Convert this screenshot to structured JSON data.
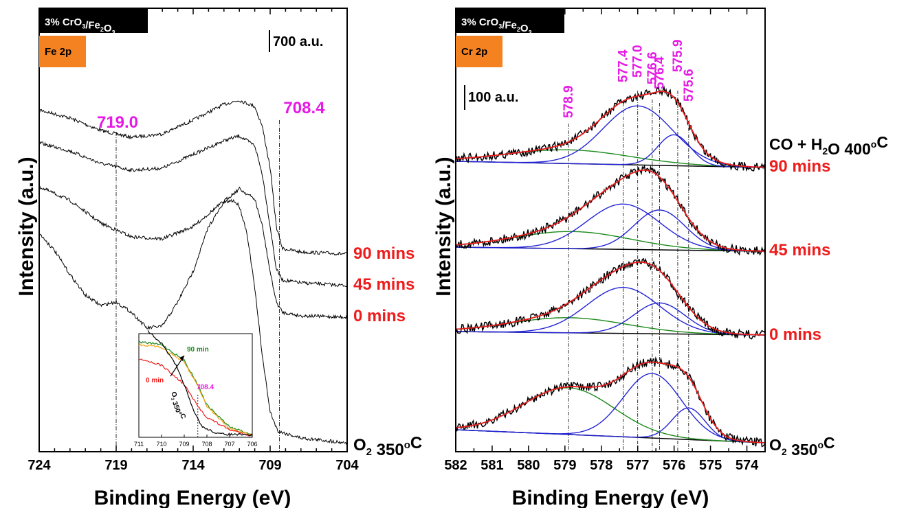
{
  "chart_data": [
    {
      "type": "line",
      "panel": "Fe 2p",
      "sample_label": "3% CrO3/Fe2O3",
      "sample_label_parts": [
        "3% CrO",
        "3",
        "/Fe",
        "2",
        "O",
        "3"
      ],
      "core_level_label": "Fe 2p",
      "scale_bar_label": "700 a.u.",
      "xlabel": "Binding Energy (eV)",
      "ylabel": "Intensity (a.u.)",
      "xlim": [
        724,
        704
      ],
      "x_reversed": true,
      "x_ticks": [
        724,
        719,
        714,
        709,
        704
      ],
      "grid": false,
      "reference_lines": [
        {
          "x": 719.0,
          "label": "719.0"
        },
        {
          "x": 708.4,
          "label": "708.4"
        }
      ],
      "series_labels": [
        {
          "text": "90 mins",
          "color": "#ee1c1c"
        },
        {
          "text": "45 mins",
          "color": "#ee1c1c"
        },
        {
          "text": "0 mins",
          "color": "#ee1c1c"
        },
        {
          "text": "O2 350°C",
          "parts": [
            "O",
            "2",
            " 350",
            "o",
            "C"
          ],
          "color": "#000000"
        }
      ],
      "series": [
        {
          "label_ref": "90 mins",
          "points": [
            [
              724,
              160
            ],
            [
              722,
              172
            ],
            [
              720,
              190
            ],
            [
              718,
              200
            ],
            [
              716,
              195
            ],
            [
              714,
              175
            ],
            [
              712,
              152
            ],
            [
              711,
              146
            ],
            [
              710,
              155
            ],
            [
              709.5,
              185
            ],
            [
              709,
              245
            ],
            [
              708.6,
              330
            ],
            [
              708.2,
              362
            ],
            [
              707,
              367
            ],
            [
              704,
              370
            ]
          ]
        },
        {
          "label_ref": "45 mins",
          "points": [
            [
              724,
              208
            ],
            [
              722,
              220
            ],
            [
              720,
              238
            ],
            [
              718,
              248
            ],
            [
              716,
              245
            ],
            [
              714,
              225
            ],
            [
              712,
              205
            ],
            [
              711,
              198
            ],
            [
              710,
              212
            ],
            [
              709.5,
              255
            ],
            [
              709,
              330
            ],
            [
              708.6,
              392
            ],
            [
              708.2,
              408
            ],
            [
              707,
              412
            ],
            [
              704,
              416
            ]
          ]
        },
        {
          "label_ref": "0 mins",
          "points": [
            [
              724,
              272
            ],
            [
              722,
              292
            ],
            [
              720,
              325
            ],
            [
              718,
              345
            ],
            [
              716,
              348
            ],
            [
              714,
              330
            ],
            [
              712,
              293
            ],
            [
              711,
              275
            ],
            [
              710,
              290
            ],
            [
              709.5,
              330
            ],
            [
              709,
              396
            ],
            [
              708.6,
              440
            ],
            [
              708.2,
              455
            ],
            [
              707,
              460
            ],
            [
              704,
              462
            ]
          ]
        },
        {
          "label_ref": "O2 350°C",
          "points": [
            [
              724,
              340
            ],
            [
              723,
              365
            ],
            [
              722,
              400
            ],
            [
              721,
              430
            ],
            [
              720,
              445
            ],
            [
              719,
              440
            ],
            [
              718,
              455
            ],
            [
              717,
              478
            ],
            [
              716,
              475
            ],
            [
              715,
              440
            ],
            [
              714,
              395
            ],
            [
              713,
              330
            ],
            [
              712,
              295
            ],
            [
              711.4,
              292
            ],
            [
              711,
              300
            ],
            [
              710.5,
              340
            ],
            [
              710,
              420
            ],
            [
              709.5,
              520
            ],
            [
              709,
              600
            ],
            [
              708.5,
              628
            ],
            [
              707,
              638
            ],
            [
              704,
              645
            ]
          ]
        }
      ],
      "inset": {
        "xlim": [
          711,
          706
        ],
        "x_ticks": [
          711,
          710,
          709,
          708,
          707,
          706
        ],
        "annotations": [
          {
            "text": "90 min",
            "color": "#1a8a1a"
          },
          {
            "text": "0 min",
            "color": "#ee1c1c"
          },
          {
            "text": "708.4",
            "color": "#e619e6"
          },
          {
            "text": "O2 350°C",
            "parts": [
              "O",
              "2",
              " 350",
              "o",
              "C"
            ],
            "color": "#000000"
          }
        ],
        "series": [
          {
            "color": "#1a8a1a",
            "points": [
              [
                711,
                498
              ],
              [
                710,
                502
              ],
              [
                709,
                525
              ],
              [
                708.4,
                560
              ],
              [
                708,
                590
              ],
              [
                707,
                622
              ],
              [
                706,
                633
              ]
            ]
          },
          {
            "color": "#f5a30f",
            "points": [
              [
                711,
                502
              ],
              [
                710,
                506
              ],
              [
                709,
                528
              ],
              [
                708.4,
                562
              ],
              [
                708,
                592
              ],
              [
                707,
                624
              ],
              [
                706,
                634
              ]
            ]
          },
          {
            "color": "#ee1c1c",
            "points": [
              [
                711,
                522
              ],
              [
                710,
                532
              ],
              [
                709,
                560
              ],
              [
                708.4,
                592
              ],
              [
                708,
                608
              ],
              [
                707,
                626
              ],
              [
                706,
                635
              ]
            ]
          },
          {
            "color": "#000000",
            "points": [
              [
                710.6,
                482
              ],
              [
                710,
                500
              ],
              [
                709.4,
                530
              ],
              [
                709,
                560
              ],
              [
                708.6,
                598
              ],
              [
                708.2,
                622
              ],
              [
                707.5,
                632
              ],
              [
                706,
                634
              ]
            ]
          }
        ]
      }
    },
    {
      "type": "line",
      "panel": "Cr 2p",
      "sample_label": "3% CrO3/Fe2O3",
      "sample_label_parts": [
        "3% CrO",
        "3",
        "/Fe",
        "2",
        "O",
        "3"
      ],
      "core_level_label": "Cr 2p",
      "scale_bar_label": "100 a.u.",
      "xlabel": "Binding Energy (eV)",
      "ylabel": "Intensity (a.u.)",
      "xlim": [
        582,
        573.5
      ],
      "x_reversed": true,
      "x_ticks": [
        582,
        581,
        580,
        579,
        578,
        577,
        576,
        575,
        574
      ],
      "grid": false,
      "reference_lines": [
        {
          "x": 578.9,
          "label": "578.9"
        },
        {
          "x": 577.4,
          "label": "577.4"
        },
        {
          "x": 577.0,
          "label": "577.0"
        },
        {
          "x": 576.6,
          "label": "576.6"
        },
        {
          "x": 576.4,
          "label": "576.4"
        },
        {
          "x": 575.9,
          "label": "575.9"
        },
        {
          "x": 575.6,
          "label": "575.6"
        }
      ],
      "series_labels": [
        {
          "text": "CO + H2O 400°C",
          "parts": [
            "CO + H",
            "2",
            "O 400",
            "o",
            "C"
          ],
          "color": "#000000"
        },
        {
          "text": "90 mins",
          "color": "#ee1c1c"
        },
        {
          "text": "45 mins",
          "color": "#ee1c1c"
        },
        {
          "text": "0 mins",
          "color": "#ee1c1c"
        },
        {
          "text": "O2 350°C",
          "parts": [
            "O",
            "2",
            " 350",
            "o",
            "C"
          ],
          "color": "#000000"
        }
      ],
      "spectra": [
        {
          "label_ref": "90 mins",
          "baseline": [
            235,
            244
          ],
          "components": [
            {
              "color": "#1a8a1a",
              "center": 578.9,
              "width": 1.7,
              "height": 20
            },
            {
              "color": "#2323d6",
              "center": 577.0,
              "width": 0.95,
              "height": 86
            },
            {
              "color": "#2323d6",
              "center": 576.0,
              "width": 0.45,
              "height": 45
            }
          ]
        },
        {
          "label_ref": "45 mins",
          "baseline": [
            360,
            366
          ],
          "components": [
            {
              "color": "#1a8a1a",
              "center": 578.8,
              "width": 1.6,
              "height": 25
            },
            {
              "color": "#2323d6",
              "center": 577.4,
              "width": 1.0,
              "height": 66
            },
            {
              "color": "#2323d6",
              "center": 576.4,
              "width": 0.7,
              "height": 58
            }
          ]
        },
        {
          "label_ref": "0 mins",
          "baseline": [
            483,
            488
          ],
          "components": [
            {
              "color": "#1a8a1a",
              "center": 578.9,
              "width": 1.6,
              "height": 22
            },
            {
              "color": "#2323d6",
              "center": 577.4,
              "width": 1.0,
              "height": 67
            },
            {
              "color": "#2323d6",
              "center": 576.4,
              "width": 0.7,
              "height": 45
            }
          ]
        },
        {
          "label_ref": "O2 350°C",
          "baseline": [
            626,
            645
          ],
          "components": [
            {
              "color": "#1a8a1a",
              "center": 578.9,
              "width": 1.25,
              "height": 68
            },
            {
              "color": "#2323d6",
              "center": 576.6,
              "width": 0.8,
              "height": 94
            },
            {
              "color": "#2323d6",
              "center": 575.6,
              "width": 0.45,
              "height": 46
            }
          ]
        }
      ]
    }
  ]
}
